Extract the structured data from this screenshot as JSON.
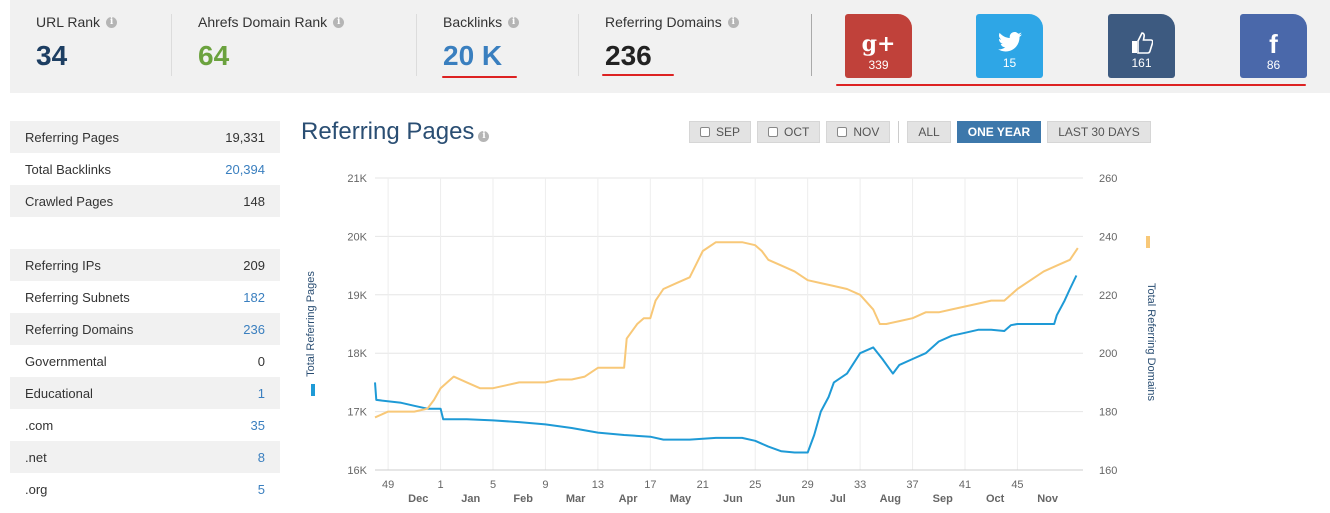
{
  "metrics": {
    "url_rank": {
      "label": "URL Rank",
      "value": "34",
      "color": "#1d3e62"
    },
    "domain_rank": {
      "label": "Ahrefs Domain Rank",
      "value": "64",
      "color": "#6ba23e"
    },
    "backlinks": {
      "label": "Backlinks",
      "value": "20 K",
      "color": "#3a7fbf"
    },
    "ref_domains": {
      "label": "Referring Domains",
      "value": "236",
      "color": "#222222"
    }
  },
  "social": [
    {
      "icon": "google-plus-icon",
      "glyph": "g+",
      "count": "339",
      "color": "#c0413a"
    },
    {
      "icon": "twitter-icon",
      "glyph": "",
      "count": "15",
      "color": "#2ea6e6"
    },
    {
      "icon": "like-icon",
      "glyph": "",
      "count": "161",
      "color": "#3d5a80"
    },
    {
      "icon": "facebook-icon",
      "glyph": "f",
      "count": "86",
      "color": "#4a68aa"
    }
  ],
  "stats": [
    {
      "label": "Referring Pages",
      "value": "19,331",
      "link": false
    },
    {
      "label": "Total Backlinks",
      "value": "20,394",
      "link": true
    },
    {
      "label": "Crawled Pages",
      "value": "148",
      "link": false
    },
    {
      "label": "",
      "value": "",
      "link": false
    },
    {
      "label": "Referring IPs",
      "value": "209",
      "link": false
    },
    {
      "label": "Referring Subnets",
      "value": "182",
      "link": true
    },
    {
      "label": "Referring Domains",
      "value": "236",
      "link": true
    },
    {
      "label": "Governmental",
      "value": "0",
      "link": false
    },
    {
      "label": "Educational",
      "value": "1",
      "link": true
    },
    {
      "label": ".com",
      "value": "35",
      "link": true
    },
    {
      "label": ".net",
      "value": "8",
      "link": true
    },
    {
      "label": ".org",
      "value": "5",
      "link": true
    }
  ],
  "chart_section": {
    "title": "Referring Pages",
    "filters": {
      "sep": "SEP",
      "oct": "OCT",
      "nov": "NOV",
      "all": "ALL",
      "one_year": "ONE YEAR",
      "last30": "LAST 30 DAYS"
    }
  },
  "chart_data": {
    "type": "line",
    "y_left_label": "Total Referring Pages",
    "y_right_label": "Total Referring Domains",
    "y_left_ticks": [
      "21K",
      "20K",
      "19K",
      "18K",
      "17K",
      "16K"
    ],
    "y_left_range": [
      16000,
      21000
    ],
    "y_right_ticks": [
      "260",
      "240",
      "220",
      "200",
      "180",
      "160"
    ],
    "y_right_range": [
      160,
      260
    ],
    "x_range": [
      0,
      54
    ],
    "week_ticks": [
      {
        "x": 1,
        "label": "49"
      },
      {
        "x": 5,
        "label": "1"
      },
      {
        "x": 9,
        "label": "5"
      },
      {
        "x": 13,
        "label": "9"
      },
      {
        "x": 17,
        "label": "13"
      },
      {
        "x": 21,
        "label": "17"
      },
      {
        "x": 25,
        "label": "21"
      },
      {
        "x": 29,
        "label": "25"
      },
      {
        "x": 33,
        "label": "29"
      },
      {
        "x": 37,
        "label": "33"
      },
      {
        "x": 41,
        "label": "37"
      },
      {
        "x": 45,
        "label": "41"
      },
      {
        "x": 49,
        "label": "45"
      }
    ],
    "month_ticks": [
      {
        "x": 3.3,
        "label": "Dec"
      },
      {
        "x": 7.3,
        "label": "Jan"
      },
      {
        "x": 11.3,
        "label": "Feb"
      },
      {
        "x": 15.3,
        "label": "Mar"
      },
      {
        "x": 19.3,
        "label": "Apr"
      },
      {
        "x": 23.3,
        "label": "May"
      },
      {
        "x": 27.3,
        "label": "Jun"
      },
      {
        "x": 31.3,
        "label": "Jun"
      },
      {
        "x": 35.3,
        "label": "Jul"
      },
      {
        "x": 39.3,
        "label": "Aug"
      },
      {
        "x": 43.3,
        "label": "Sep"
      },
      {
        "x": 47.3,
        "label": "Oct"
      },
      {
        "x": 51.3,
        "label": "Nov"
      }
    ],
    "series": [
      {
        "name": "Total Referring Pages",
        "axis": "left",
        "color": "#1e9ad6",
        "points": [
          [
            0,
            17500
          ],
          [
            0.1,
            17200
          ],
          [
            2,
            17150
          ],
          [
            3,
            17100
          ],
          [
            4,
            17050
          ],
          [
            5,
            17050
          ],
          [
            5.2,
            16870
          ],
          [
            7,
            16870
          ],
          [
            9,
            16850
          ],
          [
            11,
            16820
          ],
          [
            13,
            16780
          ],
          [
            15,
            16720
          ],
          [
            17,
            16640
          ],
          [
            19,
            16600
          ],
          [
            21,
            16570
          ],
          [
            22,
            16520
          ],
          [
            24,
            16520
          ],
          [
            26,
            16550
          ],
          [
            28,
            16550
          ],
          [
            29,
            16500
          ],
          [
            30,
            16400
          ],
          [
            31,
            16320
          ],
          [
            32,
            16300
          ],
          [
            33,
            16300
          ],
          [
            33.5,
            16600
          ],
          [
            34,
            17000
          ],
          [
            34.6,
            17250
          ],
          [
            35,
            17500
          ],
          [
            36,
            17650
          ],
          [
            37,
            18000
          ],
          [
            38,
            18100
          ],
          [
            38.7,
            17900
          ],
          [
            39.5,
            17650
          ],
          [
            40,
            17800
          ],
          [
            41,
            17900
          ],
          [
            42,
            18000
          ],
          [
            43,
            18200
          ],
          [
            44,
            18300
          ],
          [
            45,
            18350
          ],
          [
            46,
            18400
          ],
          [
            47,
            18400
          ],
          [
            48,
            18380
          ],
          [
            48.5,
            18480
          ],
          [
            49,
            18500
          ],
          [
            51,
            18500
          ],
          [
            51.8,
            18500
          ],
          [
            52,
            18650
          ],
          [
            52.6,
            18900
          ],
          [
            53,
            19100
          ],
          [
            53.5,
            19330
          ]
        ]
      },
      {
        "name": "Total Referring Domains",
        "axis": "right",
        "color": "#f8c878",
        "points": [
          [
            0,
            178
          ],
          [
            1,
            180
          ],
          [
            2,
            180
          ],
          [
            3,
            180
          ],
          [
            4,
            181
          ],
          [
            4.5,
            184
          ],
          [
            5,
            188
          ],
          [
            6,
            192
          ],
          [
            7,
            190
          ],
          [
            8,
            188
          ],
          [
            9,
            188
          ],
          [
            10,
            189
          ],
          [
            11,
            190
          ],
          [
            12,
            190
          ],
          [
            13,
            190
          ],
          [
            14,
            191
          ],
          [
            15,
            191
          ],
          [
            16,
            192
          ],
          [
            17,
            195
          ],
          [
            18,
            195
          ],
          [
            19,
            195
          ],
          [
            19.2,
            205
          ],
          [
            20,
            210
          ],
          [
            20.5,
            212
          ],
          [
            21,
            212
          ],
          [
            21.4,
            218
          ],
          [
            22,
            222
          ],
          [
            23,
            224
          ],
          [
            24,
            226
          ],
          [
            25,
            235
          ],
          [
            26,
            238
          ],
          [
            27,
            238
          ],
          [
            28,
            238
          ],
          [
            29,
            237
          ],
          [
            29.5,
            235
          ],
          [
            30,
            232
          ],
          [
            31,
            230
          ],
          [
            32,
            228
          ],
          [
            33,
            225
          ],
          [
            34,
            224
          ],
          [
            35,
            223
          ],
          [
            36,
            222
          ],
          [
            37,
            220
          ],
          [
            38,
            215
          ],
          [
            38.5,
            210
          ],
          [
            39,
            210
          ],
          [
            40,
            211
          ],
          [
            41,
            212
          ],
          [
            42,
            214
          ],
          [
            43,
            214
          ],
          [
            44,
            215
          ],
          [
            45,
            216
          ],
          [
            46,
            217
          ],
          [
            47,
            218
          ],
          [
            48,
            218
          ],
          [
            49,
            222
          ],
          [
            50,
            225
          ],
          [
            51,
            228
          ],
          [
            52,
            230
          ],
          [
            53,
            232
          ],
          [
            53.6,
            236
          ]
        ]
      }
    ]
  }
}
